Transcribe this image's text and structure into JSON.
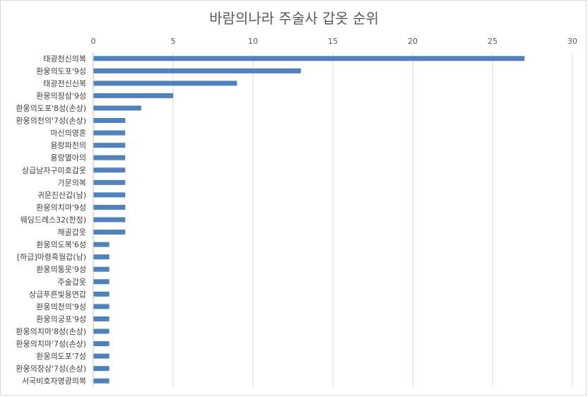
{
  "chart_data": {
    "type": "bar",
    "orientation": "horizontal",
    "title": "바람의나라 주술사 갑옷 순위",
    "xlabel": "",
    "ylabel": "",
    "xlim": [
      0,
      30
    ],
    "ticks": [
      0,
      5,
      10,
      15,
      20,
      25,
      30
    ],
    "axis_position": "top",
    "grid": true,
    "bar_color": "#4f81bd",
    "categories": [
      "태광천신의복",
      "환웅의도포'9성",
      "태광천신신복",
      "환웅의장삼'9성",
      "환웅의도포'8성(손상)",
      "환웅의천의'7성(손상)",
      "마신의영혼",
      "용랑파천의",
      "용랑멸아의",
      "상급남자구미호갑옷",
      "가문의복",
      "귀문진산갑(남)",
      "환웅의치마'9성",
      "웨딩드레스32(한정)",
      "해골갑옷",
      "환웅의도복'6성",
      "[하급]마령흑월갑(남)",
      "환웅의통옷'9성",
      "주술갑옷",
      "상급푸른빛용연갑",
      "환웅의천의'9성",
      "환웅의궁포'9성",
      "환웅의치마'8성(손상)",
      "환웅의치마'7성(손상)",
      "환웅의도포'7성",
      "환웅의장삼'7성(손상)",
      "서국비호자명광의복"
    ],
    "values": [
      27,
      13,
      9,
      5,
      3,
      2,
      2,
      2,
      2,
      2,
      2,
      2,
      2,
      2,
      2,
      1,
      1,
      1,
      1,
      1,
      1,
      1,
      1,
      1,
      1,
      1,
      1
    ]
  }
}
